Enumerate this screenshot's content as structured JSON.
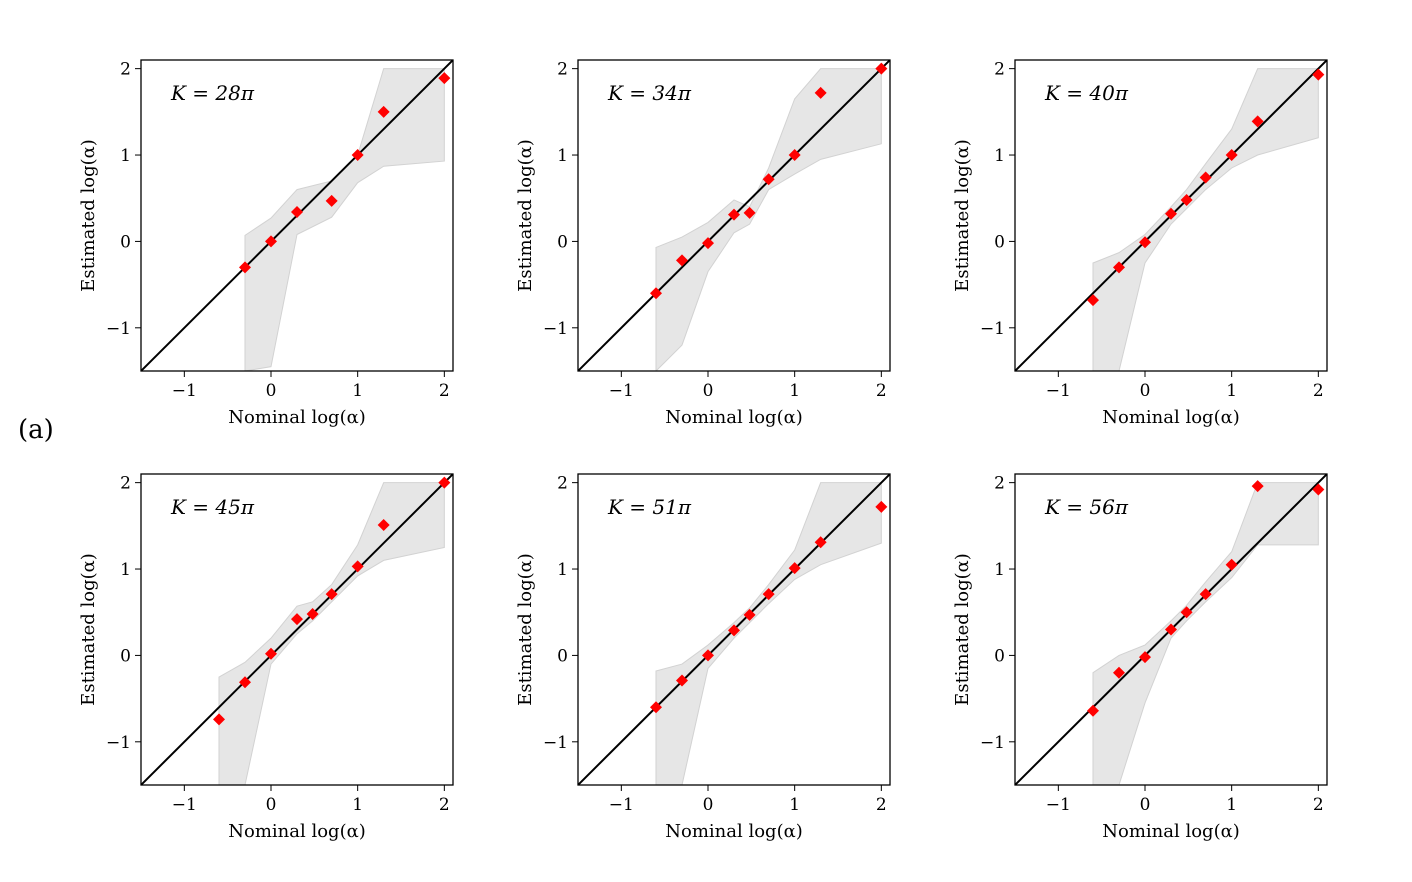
{
  "figure_label": "(a)",
  "colors": {
    "marker": "#ff0000",
    "band": "#e6e6e6",
    "band_edge": "#d2d2d2",
    "line": "#000000"
  },
  "chart_data": [
    {
      "type": "scatter",
      "title": "K = 28π",
      "xlabel": "Nominal log(α)",
      "ylabel": "Estimated log(α)",
      "xlim": [
        -1.5,
        2.1
      ],
      "ylim": [
        -1.5,
        2.1
      ],
      "xticks": [
        -1,
        0,
        1,
        2
      ],
      "yticks": [
        -1,
        0,
        1,
        2
      ],
      "xtick_labels": [
        "−1",
        "0",
        "1",
        "2"
      ],
      "ytick_labels": [
        "−1",
        "0",
        "1",
        "2"
      ],
      "diagonal": true,
      "series": [
        {
          "name": "estimate",
          "x": [
            -0.3,
            0,
            0.3,
            0.7,
            1,
            1.3,
            2
          ],
          "y": [
            -0.3,
            0,
            0.34,
            0.47,
            1,
            1.5,
            1.89
          ]
        }
      ],
      "band": {
        "x": [
          -0.3,
          0,
          0.3,
          0.7,
          1,
          1.3,
          2
        ],
        "lower": [
          -1.5,
          -1.45,
          0.08,
          0.28,
          0.68,
          0.87,
          0.93
        ],
        "upper": [
          0.07,
          0.27,
          0.6,
          0.7,
          1.0,
          2.0,
          2.0
        ]
      }
    },
    {
      "type": "scatter",
      "title": "K = 34π",
      "xlabel": "Nominal log(α)",
      "ylabel": "Estimated log(α)",
      "xlim": [
        -1.5,
        2.1
      ],
      "ylim": [
        -1.5,
        2.1
      ],
      "xticks": [
        -1,
        0,
        1,
        2
      ],
      "yticks": [
        -1,
        0,
        1,
        2
      ],
      "xtick_labels": [
        "−1",
        "0",
        "1",
        "2"
      ],
      "ytick_labels": [
        "−1",
        "0",
        "1",
        "2"
      ],
      "diagonal": true,
      "series": [
        {
          "name": "estimate",
          "x": [
            -0.6,
            -0.3,
            0,
            0.3,
            0.48,
            0.7,
            1,
            1.3,
            2
          ],
          "y": [
            -0.6,
            -0.22,
            -0.02,
            0.31,
            0.33,
            0.72,
            1,
            1.72,
            2
          ]
        }
      ],
      "band": {
        "x": [
          -0.6,
          -0.3,
          0,
          0.3,
          0.48,
          0.7,
          1,
          1.3,
          2
        ],
        "lower": [
          -1.5,
          -1.2,
          -0.35,
          0.1,
          0.2,
          0.6,
          0.78,
          0.95,
          1.13
        ],
        "upper": [
          -0.07,
          0.05,
          0.22,
          0.48,
          0.4,
          0.85,
          1.65,
          2.0,
          2.0
        ]
      }
    },
    {
      "type": "scatter",
      "title": "K = 40π",
      "xlabel": "Nominal log(α)",
      "ylabel": "Estimated log(α)",
      "xlim": [
        -1.5,
        2.1
      ],
      "ylim": [
        -1.5,
        2.1
      ],
      "xticks": [
        -1,
        0,
        1,
        2
      ],
      "yticks": [
        -1,
        0,
        1,
        2
      ],
      "xtick_labels": [
        "−1",
        "0",
        "1",
        "2"
      ],
      "ytick_labels": [
        "−1",
        "0",
        "1",
        "2"
      ],
      "diagonal": true,
      "series": [
        {
          "name": "estimate",
          "x": [
            -0.6,
            -0.3,
            0,
            0.3,
            0.48,
            0.7,
            1,
            1.3,
            2
          ],
          "y": [
            -0.68,
            -0.3,
            -0.01,
            0.32,
            0.48,
            0.74,
            1,
            1.39,
            1.93
          ]
        }
      ],
      "band": {
        "x": [
          -0.6,
          -0.3,
          0,
          0.3,
          0.48,
          0.7,
          1,
          1.3,
          2
        ],
        "lower": [
          -1.5,
          -1.5,
          -0.25,
          0.2,
          0.38,
          0.6,
          0.85,
          1.0,
          1.2
        ],
        "upper": [
          -0.25,
          -0.13,
          0.08,
          0.4,
          0.6,
          0.9,
          1.3,
          2.0,
          2.0
        ]
      }
    },
    {
      "type": "scatter",
      "title": "K = 45π",
      "xlabel": "Nominal log(α)",
      "ylabel": "Estimated log(α)",
      "xlim": [
        -1.5,
        2.1
      ],
      "ylim": [
        -1.5,
        2.1
      ],
      "xticks": [
        -1,
        0,
        1,
        2
      ],
      "yticks": [
        -1,
        0,
        1,
        2
      ],
      "xtick_labels": [
        "−1",
        "0",
        "1",
        "2"
      ],
      "ytick_labels": [
        "−1",
        "0",
        "1",
        "2"
      ],
      "diagonal": true,
      "series": [
        {
          "name": "estimate",
          "x": [
            -0.6,
            -0.3,
            0,
            0.3,
            0.48,
            0.7,
            1,
            1.3,
            2
          ],
          "y": [
            -0.74,
            -0.31,
            0.02,
            0.42,
            0.48,
            0.71,
            1.03,
            1.51,
            2
          ]
        }
      ],
      "band": {
        "x": [
          -0.6,
          -0.3,
          0,
          0.3,
          0.48,
          0.7,
          1,
          1.3,
          2
        ],
        "lower": [
          -1.5,
          -1.5,
          -0.1,
          0.25,
          0.4,
          0.62,
          0.92,
          1.1,
          1.25
        ],
        "upper": [
          -0.25,
          -0.08,
          0.2,
          0.57,
          0.62,
          0.82,
          1.28,
          2.0,
          2.0
        ]
      }
    },
    {
      "type": "scatter",
      "title": "K = 51π",
      "xlabel": "Nominal log(α)",
      "ylabel": "Estimated log(α)",
      "xlim": [
        -1.5,
        2.1
      ],
      "ylim": [
        -1.5,
        2.1
      ],
      "xticks": [
        -1,
        0,
        1,
        2
      ],
      "yticks": [
        -1,
        0,
        1,
        2
      ],
      "xtick_labels": [
        "−1",
        "0",
        "1",
        "2"
      ],
      "ytick_labels": [
        "−1",
        "0",
        "1",
        "2"
      ],
      "diagonal": true,
      "series": [
        {
          "name": "estimate",
          "x": [
            -0.6,
            -0.3,
            0,
            0.3,
            0.48,
            0.7,
            1,
            1.3,
            2
          ],
          "y": [
            -0.6,
            -0.29,
            0,
            0.29,
            0.47,
            0.71,
            1.01,
            1.31,
            1.72
          ]
        }
      ],
      "band": {
        "x": [
          -0.6,
          -0.3,
          0,
          0.3,
          0.48,
          0.7,
          1,
          1.3,
          2
        ],
        "lower": [
          -1.5,
          -1.5,
          -0.15,
          0.2,
          0.38,
          0.6,
          0.88,
          1.05,
          1.3
        ],
        "upper": [
          -0.18,
          -0.1,
          0.12,
          0.38,
          0.55,
          0.82,
          1.22,
          2.0,
          2.0
        ]
      }
    },
    {
      "type": "scatter",
      "title": "K = 56π",
      "xlabel": "Nominal log(α)",
      "ylabel": "Estimated log(α)",
      "xlim": [
        -1.5,
        2.1
      ],
      "ylim": [
        -1.5,
        2.1
      ],
      "xticks": [
        -1,
        0,
        1,
        2
      ],
      "yticks": [
        -1,
        0,
        1,
        2
      ],
      "xtick_labels": [
        "−1",
        "0",
        "1",
        "2"
      ],
      "ytick_labels": [
        "−1",
        "0",
        "1",
        "2"
      ],
      "diagonal": true,
      "series": [
        {
          "name": "estimate",
          "x": [
            -0.6,
            -0.3,
            0,
            0.3,
            0.48,
            0.7,
            1,
            1.3,
            2
          ],
          "y": [
            -0.64,
            -0.2,
            -0.02,
            0.3,
            0.5,
            0.71,
            1.05,
            1.96,
            1.92
          ]
        }
      ],
      "band": {
        "x": [
          -0.6,
          -0.3,
          0,
          0.3,
          0.48,
          0.7,
          1,
          1.3,
          2
        ],
        "lower": [
          -1.5,
          -1.5,
          -0.55,
          0.2,
          0.4,
          0.62,
          0.9,
          1.28,
          1.28
        ],
        "upper": [
          -0.2,
          0.0,
          0.12,
          0.4,
          0.58,
          0.85,
          1.2,
          2.0,
          2.0
        ]
      }
    }
  ]
}
